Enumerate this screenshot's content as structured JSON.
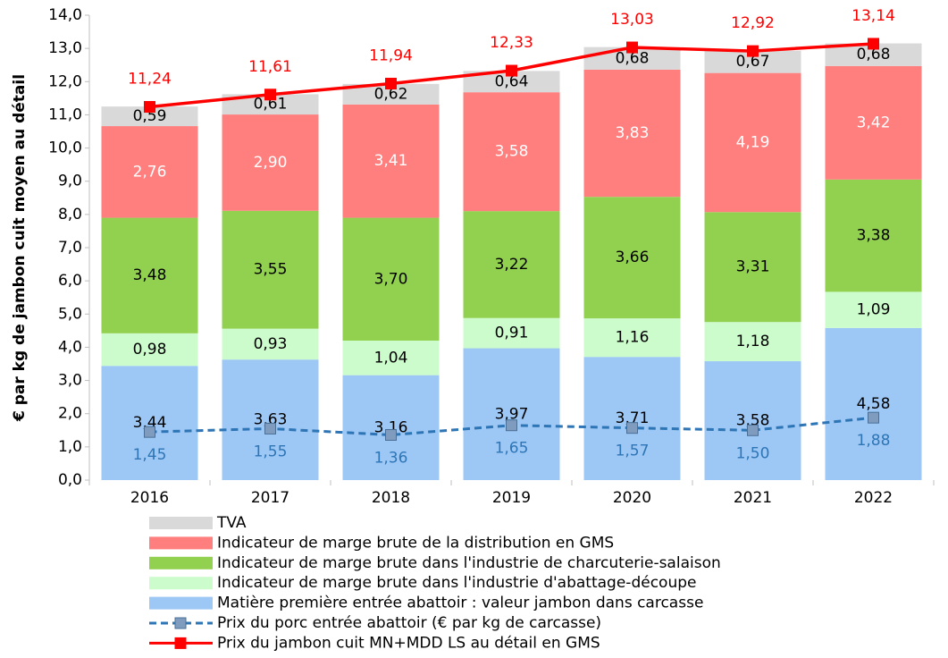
{
  "chart_data": {
    "type": "stacked_bar_line",
    "y_axis_label": "€ par kg de jambon cuit moyen au détail",
    "categories": [
      "2016",
      "2017",
      "2018",
      "2019",
      "2020",
      "2021",
      "2022"
    ],
    "ylim": [
      0,
      14
    ],
    "yticks": [
      {
        "value": 0,
        "label": "0,0"
      },
      {
        "value": 1,
        "label": "1,0"
      },
      {
        "value": 2,
        "label": "2,0"
      },
      {
        "value": 3,
        "label": "3,0"
      },
      {
        "value": 4,
        "label": "4,0"
      },
      {
        "value": 5,
        "label": "5,0"
      },
      {
        "value": 6,
        "label": "6,0"
      },
      {
        "value": 7,
        "label": "7,0"
      },
      {
        "value": 8,
        "label": "8,0"
      },
      {
        "value": 9,
        "label": "9,0"
      },
      {
        "value": 10,
        "label": "10,0"
      },
      {
        "value": 11,
        "label": "11,0"
      },
      {
        "value": 12,
        "label": "12,0"
      },
      {
        "value": 13,
        "label": "13,0"
      },
      {
        "value": 14,
        "label": "14,0"
      }
    ],
    "series": [
      {
        "name": "Matière première entrée abattoir : valeur jambon dans carcasse",
        "kind": "bar",
        "color": "#9dc8f5",
        "label_color": "#000000",
        "values": [
          3.44,
          3.63,
          3.16,
          3.97,
          3.71,
          3.58,
          4.58
        ],
        "value_labels": [
          "3,44",
          "3,63",
          "3,16",
          "3,97",
          "3,71",
          "3,58",
          "4,58"
        ]
      },
      {
        "name": "Indicateur de marge brute dans l'industrie d'abattage-découpe",
        "kind": "bar",
        "color": "#ccfbcc",
        "label_color": "#000000",
        "values": [
          0.98,
          0.93,
          1.04,
          0.91,
          1.16,
          1.18,
          1.09
        ],
        "value_labels": [
          "0,98",
          "0,93",
          "1,04",
          "0,91",
          "1,16",
          "1,18",
          "1,09"
        ]
      },
      {
        "name": "Indicateur de marge brute dans l'industrie de charcuterie-salaison",
        "kind": "bar",
        "color": "#92d050",
        "label_color": "#000000",
        "values": [
          3.48,
          3.55,
          3.7,
          3.22,
          3.66,
          3.31,
          3.38
        ],
        "value_labels": [
          "3,48",
          "3,55",
          "3,70",
          "3,22",
          "3,66",
          "3,31",
          "3,38"
        ]
      },
      {
        "name": "Indicateur de marge brute de la distribution en GMS",
        "kind": "bar",
        "color": "#ff7f7f",
        "label_color": "#ffffff",
        "values": [
          2.76,
          2.9,
          3.41,
          3.58,
          3.83,
          4.19,
          3.42
        ],
        "value_labels": [
          "2,76",
          "2,90",
          "3,41",
          "3,58",
          "3,83",
          "4,19",
          "3,42"
        ]
      },
      {
        "name": "TVA",
        "kind": "bar",
        "color": "#d9d9d9",
        "label_color": "#000000",
        "values": [
          0.59,
          0.61,
          0.62,
          0.64,
          0.68,
          0.67,
          0.68
        ],
        "value_labels": [
          "0,59",
          "0,61",
          "0,62",
          "0,64",
          "0,68",
          "0,67",
          "0,68"
        ]
      },
      {
        "name": "Prix du porc entrée abattoir (€ par kg de carcasse)",
        "kind": "line",
        "color": "#2e75b6",
        "marker_color": "#7f9cbf",
        "label_color": "#2e75b6",
        "dashed": true,
        "values": [
          1.45,
          1.55,
          1.36,
          1.65,
          1.57,
          1.5,
          1.88
        ],
        "value_labels": [
          "1,45",
          "1,55",
          "1,36",
          "1,65",
          "1,57",
          "1,50",
          "1,88"
        ]
      },
      {
        "name": "Prix  du jambon cuit MN+MDD LS au détail en GMS",
        "kind": "line",
        "color": "#ff0000",
        "marker_color": "#ff0000",
        "label_color": "#ff0000",
        "dashed": false,
        "values": [
          11.24,
          11.61,
          11.94,
          12.33,
          13.03,
          12.92,
          13.14
        ],
        "value_labels": [
          "11,24",
          "11,61",
          "11,94",
          "12,33",
          "13,03",
          "12,92",
          "13,14"
        ]
      }
    ]
  }
}
